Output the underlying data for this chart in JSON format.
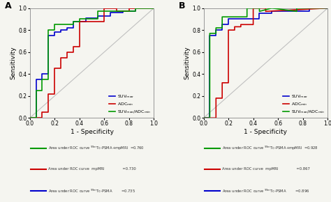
{
  "panel_A": {
    "title": "A",
    "curves": {
      "blue": {
        "x": [
          0.0,
          0.05,
          0.05,
          0.1,
          0.1,
          0.15,
          0.15,
          0.2,
          0.2,
          0.25,
          0.25,
          0.3,
          0.3,
          0.35,
          0.35,
          0.45,
          0.45,
          0.55,
          0.55,
          0.65,
          0.65,
          0.75,
          0.75,
          0.85,
          0.85,
          1.0
        ],
        "y": [
          0.0,
          0.0,
          0.35,
          0.35,
          0.4,
          0.4,
          0.75,
          0.75,
          0.78,
          0.78,
          0.8,
          0.8,
          0.82,
          0.82,
          0.88,
          0.88,
          0.91,
          0.91,
          0.93,
          0.93,
          0.96,
          0.96,
          0.97,
          0.97,
          1.0,
          1.0
        ],
        "color": "#0000cc",
        "label": "SUV$_{max}$"
      },
      "red": {
        "x": [
          0.0,
          0.1,
          0.1,
          0.15,
          0.15,
          0.2,
          0.2,
          0.25,
          0.25,
          0.3,
          0.3,
          0.35,
          0.35,
          0.4,
          0.4,
          0.6,
          0.6,
          0.7,
          0.7,
          0.8,
          0.8,
          1.0
        ],
        "y": [
          0.0,
          0.0,
          0.05,
          0.05,
          0.22,
          0.22,
          0.45,
          0.45,
          0.55,
          0.55,
          0.6,
          0.6,
          0.65,
          0.65,
          0.88,
          0.88,
          1.0,
          1.0,
          0.97,
          0.97,
          1.0,
          1.0
        ],
        "color": "#cc0000",
        "label": "ADC$_{min}$"
      },
      "green": {
        "x": [
          0.0,
          0.05,
          0.05,
          0.1,
          0.1,
          0.15,
          0.15,
          0.2,
          0.2,
          0.35,
          0.35,
          0.4,
          0.4,
          0.55,
          0.55,
          0.75,
          0.75,
          0.85,
          0.85,
          1.0
        ],
        "y": [
          0.0,
          0.0,
          0.25,
          0.25,
          0.35,
          0.35,
          0.8,
          0.8,
          0.85,
          0.85,
          0.88,
          0.88,
          0.9,
          0.9,
          0.97,
          0.97,
          0.97,
          0.97,
          1.0,
          1.0
        ],
        "color": "#009900",
        "label": "SUV$_{max}$/ADC$_{min}$"
      }
    },
    "legend_items": [
      {
        "color": "#009900",
        "text": "Area under ROC curve $^{99m}$Tc-PSMA+mpMRI  =0.760"
      },
      {
        "color": "#cc0000",
        "text": "Area under ROC curve  mpMRI                =0.730"
      },
      {
        "color": "#0000cc",
        "text": "Area under ROC curve $^{99m}$Tc-PSMA        =0.735"
      }
    ],
    "xlabel": "1 - Specificity",
    "ylabel": "Sensitivity",
    "xlim": [
      0.0,
      1.0
    ],
    "ylim": [
      0.0,
      1.0
    ],
    "xticks": [
      0.0,
      0.2,
      0.4,
      0.6,
      0.8,
      1.0
    ],
    "yticks": [
      0.0,
      0.2,
      0.4,
      0.6,
      0.8,
      1.0
    ]
  },
  "panel_B": {
    "title": "B",
    "curves": {
      "blue": {
        "x": [
          0.0,
          0.05,
          0.05,
          0.1,
          0.1,
          0.15,
          0.15,
          0.2,
          0.2,
          0.45,
          0.45,
          0.55,
          0.55,
          0.75,
          0.75,
          0.85,
          0.85,
          1.0
        ],
        "y": [
          0.0,
          0.0,
          0.75,
          0.75,
          0.8,
          0.8,
          0.85,
          0.85,
          0.9,
          0.9,
          0.95,
          0.95,
          0.97,
          0.97,
          0.97,
          0.97,
          1.0,
          1.0
        ],
        "color": "#0000cc",
        "label": "SUV$_{max}$"
      },
      "red": {
        "x": [
          0.0,
          0.1,
          0.1,
          0.15,
          0.15,
          0.2,
          0.2,
          0.25,
          0.25,
          0.3,
          0.3,
          0.4,
          0.4,
          0.5,
          0.5,
          1.0
        ],
        "y": [
          0.0,
          0.0,
          0.18,
          0.18,
          0.32,
          0.32,
          0.8,
          0.8,
          0.83,
          0.83,
          0.85,
          0.85,
          1.0,
          1.0,
          0.97,
          1.0
        ],
        "color": "#cc0000",
        "label": "ADC$_{min}$"
      },
      "green": {
        "x": [
          0.0,
          0.05,
          0.05,
          0.1,
          0.1,
          0.15,
          0.15,
          0.35,
          0.35,
          0.45,
          0.45,
          0.55,
          0.55,
          0.75,
          0.75,
          1.0
        ],
        "y": [
          0.0,
          0.0,
          0.77,
          0.77,
          0.82,
          0.82,
          0.92,
          0.92,
          1.0,
          1.0,
          0.97,
          1.0,
          1.0,
          0.97,
          1.0,
          1.0
        ],
        "color": "#009900",
        "label": "SUV$_{max}$/ADC$_{min}$"
      }
    },
    "legend_items": [
      {
        "color": "#009900",
        "text": "Area under ROC curve $^{99m}$Tc-PSMA+mpMRI  =0.928"
      },
      {
        "color": "#cc0000",
        "text": "Area under ROC curve  mpMRI                =0.867"
      },
      {
        "color": "#0000cc",
        "text": "Area under ROC curve $^{99m}$Tc-PSMA        =0.896"
      }
    ],
    "xlabel": "1 - Specificity",
    "ylabel": "Sensitivity",
    "xlim": [
      0.0,
      1.0
    ],
    "ylim": [
      0.0,
      1.0
    ],
    "xticks": [
      0.0,
      0.2,
      0.4,
      0.6,
      0.8,
      1.0
    ],
    "yticks": [
      0.0,
      0.2,
      0.4,
      0.6,
      0.8,
      1.0
    ]
  },
  "bg_color": "#f5f5f0",
  "diagonal_color": "#c0c0c0"
}
